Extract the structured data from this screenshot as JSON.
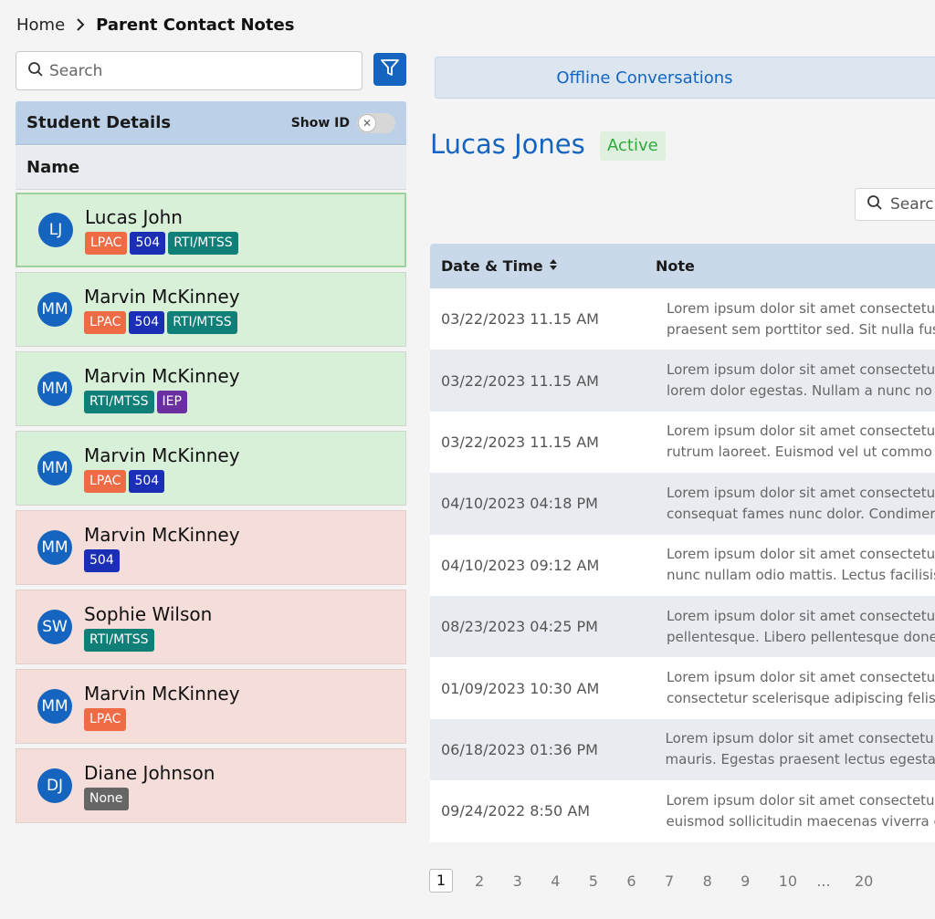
{
  "breadcrumb": {
    "home": "Home",
    "current": "Parent Contact Notes"
  },
  "left": {
    "search_placeholder": "Search",
    "panel_title": "Student Details",
    "show_id_label": "Show ID",
    "column_name": "Name",
    "students": [
      {
        "initials": "LJ",
        "name": "Lucas John",
        "tags": [
          "LPAC",
          "504",
          "RTI/MTSS"
        ],
        "status": "green",
        "selected": true
      },
      {
        "initials": "MM",
        "name": "Marvin McKinney",
        "tags": [
          "LPAC",
          "504",
          "RTI/MTSS"
        ],
        "status": "green"
      },
      {
        "initials": "MM",
        "name": "Marvin McKinney",
        "tags": [
          "RTI/MTSS",
          "IEP"
        ],
        "status": "green"
      },
      {
        "initials": "MM",
        "name": "Marvin McKinney",
        "tags": [
          "LPAC",
          "504"
        ],
        "status": "green"
      },
      {
        "initials": "MM",
        "name": "Marvin McKinney",
        "tags": [
          "504"
        ],
        "status": "red"
      },
      {
        "initials": "SW",
        "name": "Sophie Wilson",
        "tags": [
          "RTI/MTSS"
        ],
        "status": "red"
      },
      {
        "initials": "MM",
        "name": "Marvin McKinney",
        "tags": [
          "LPAC"
        ],
        "status": "red"
      },
      {
        "initials": "DJ",
        "name": "Diane Johnson",
        "tags": [
          "None"
        ],
        "status": "red"
      }
    ]
  },
  "right": {
    "tab_label": "Offline Conversations",
    "student_name": "Lucas Jones",
    "student_status": "Active",
    "search_placeholder": "Searc",
    "columns": {
      "date": "Date & Time",
      "note": "Note"
    },
    "rows": [
      {
        "date": "03/22/2023 11.15 AM",
        "note1": "Lorem ipsum dolor sit amet consectetu",
        "note2": "praesent sem porttitor sed. Sit nulla fus"
      },
      {
        "date": "03/22/2023 11.15 AM",
        "note1": "Lorem ipsum dolor sit amet consectetu",
        "note2": "lorem dolor egestas. Nullam a nunc no"
      },
      {
        "date": "03/22/2023 11.15 AM",
        "note1": "Lorem ipsum dolor sit amet consectetu",
        "note2": "rutrum laoreet. Euismod vel ut commo"
      },
      {
        "date": "04/10/2023 04:18 PM",
        "note1": "Lorem ipsum dolor sit amet consectetu",
        "note2": "consequat fames nunc dolor. Condimer"
      },
      {
        "date": "04/10/2023 09:12 AM",
        "note1": "Lorem ipsum dolor sit amet consectetu",
        "note2": "nunc nullam odio mattis. Lectus facilisis"
      },
      {
        "date": "08/23/2023 04:25 PM",
        "note1": "Lorem ipsum dolor sit amet consectetu",
        "note2": "pellentesque. Libero pellentesque done"
      },
      {
        "date": "01/09/2023 10:30 AM",
        "note1": "Lorem ipsum dolor sit amet consectetu",
        "note2": "consectetur scelerisque adipiscing felis"
      },
      {
        "date": "06/18/2023 01:36 PM",
        "note1": "Lorem ipsum dolor sit amet consectetu",
        "note2": "mauris. Egestas praesent lectus egestas"
      },
      {
        "date": "09/24/2022 8:50 AM",
        "note1": "Lorem ipsum dolor sit amet consectetu",
        "note2": "euismod sollicitudin maecenas viverra e"
      }
    ],
    "pagination": [
      "1",
      "2",
      "3",
      "4",
      "5",
      "6",
      "7",
      "8",
      "9",
      "10",
      "...",
      "20"
    ],
    "current_page": "1"
  },
  "colors": {
    "accent": "#1565c0",
    "row_green": "#d8efd8",
    "row_red": "#f5ded9",
    "tag_lpac": "#ef6b45",
    "tag_504": "#1a2fb5",
    "tag_rti": "#0f7f78",
    "tag_iep": "#6b2fa0",
    "tag_none": "#666666",
    "status_active": "#2eaa3c"
  },
  "icons": [
    "chevron-right-icon",
    "search-icon",
    "filter-icon",
    "close-icon",
    "sort-icon"
  ]
}
